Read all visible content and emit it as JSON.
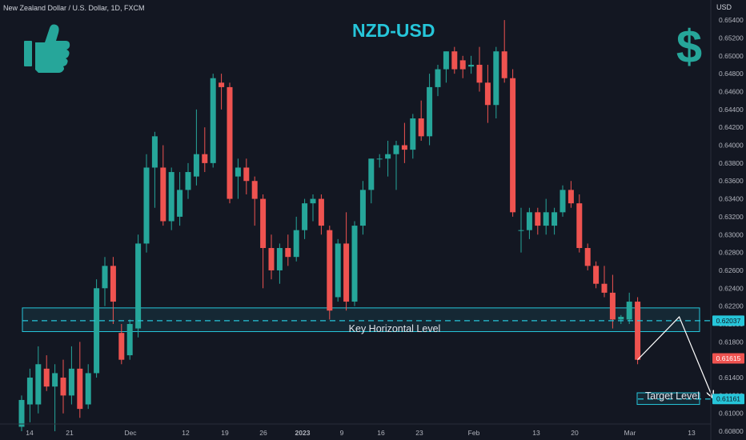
{
  "header": {
    "symbol_info": "New Zealand Dollar / U.S. Dollar, 1D, FXCM",
    "currency": "USD",
    "title": "NZD-USD"
  },
  "icons": {
    "left": "thumbs-up-icon",
    "right": "dollar-icon",
    "accent": "#26a69a"
  },
  "annotations": {
    "key_level": "Key Horizontal Level",
    "target_level": "Target Level"
  },
  "price_badges": {
    "key_level_price": "0.62037",
    "current_price": "0.61615",
    "target_price": "0.61161"
  },
  "colors": {
    "background": "#131722",
    "up": "#26a69a",
    "down": "#ef5350",
    "cyan": "#26c6da"
  },
  "chart_data": {
    "type": "candlestick",
    "title": "NZD-USD",
    "ylim": [
      0.6072,
      0.6558
    ],
    "y_ticks": [
      "0.65400",
      "0.65200",
      "0.65000",
      "0.64800",
      "0.64600",
      "0.64400",
      "0.64200",
      "0.64000",
      "0.63800",
      "0.63600",
      "0.63400",
      "0.63200",
      "0.63000",
      "0.62800",
      "0.62600",
      "0.62400",
      "0.62200",
      "0.62000",
      "0.61800",
      "0.61600",
      "0.61400",
      "0.61200",
      "0.61000",
      "0.60800"
    ],
    "x_ticks": [
      {
        "label": "14",
        "bold": false
      },
      {
        "label": "21",
        "bold": false
      },
      {
        "label": "Dec",
        "bold": false
      },
      {
        "label": "12",
        "bold": false
      },
      {
        "label": "19",
        "bold": false
      },
      {
        "label": "26",
        "bold": false
      },
      {
        "label": "2023",
        "bold": true
      },
      {
        "label": "9",
        "bold": false
      },
      {
        "label": "16",
        "bold": false
      },
      {
        "label": "23",
        "bold": false
      },
      {
        "label": "Feb",
        "bold": false
      },
      {
        "label": "13",
        "bold": false
      },
      {
        "label": "20",
        "bold": false
      },
      {
        "label": "Mar",
        "bold": false
      },
      {
        "label": "13",
        "bold": false
      }
    ],
    "candles": [
      {
        "o": 0.6085,
        "h": 0.612,
        "l": 0.608,
        "c": 0.6115
      },
      {
        "o": 0.611,
        "h": 0.615,
        "l": 0.609,
        "c": 0.614
      },
      {
        "o": 0.611,
        "h": 0.6175,
        "l": 0.61,
        "c": 0.6155
      },
      {
        "o": 0.615,
        "h": 0.6165,
        "l": 0.6125,
        "c": 0.613
      },
      {
        "o": 0.613,
        "h": 0.6155,
        "l": 0.608,
        "c": 0.6145
      },
      {
        "o": 0.614,
        "h": 0.616,
        "l": 0.61,
        "c": 0.612
      },
      {
        "o": 0.612,
        "h": 0.6175,
        "l": 0.611,
        "c": 0.615
      },
      {
        "o": 0.615,
        "h": 0.618,
        "l": 0.6095,
        "c": 0.6105
      },
      {
        "o": 0.611,
        "h": 0.6155,
        "l": 0.6105,
        "c": 0.6145
      },
      {
        "o": 0.6145,
        "h": 0.625,
        "l": 0.614,
        "c": 0.624
      },
      {
        "o": 0.624,
        "h": 0.6275,
        "l": 0.622,
        "c": 0.6265
      },
      {
        "o": 0.6265,
        "h": 0.6275,
        "l": 0.62,
        "c": 0.6225
      },
      {
        "o": 0.619,
        "h": 0.62,
        "l": 0.6155,
        "c": 0.616
      },
      {
        "o": 0.6165,
        "h": 0.6205,
        "l": 0.616,
        "c": 0.62
      },
      {
        "o": 0.6195,
        "h": 0.63,
        "l": 0.6185,
        "c": 0.629
      },
      {
        "o": 0.629,
        "h": 0.639,
        "l": 0.628,
        "c": 0.6375
      },
      {
        "o": 0.6375,
        "h": 0.6415,
        "l": 0.633,
        "c": 0.641
      },
      {
        "o": 0.6375,
        "h": 0.64,
        "l": 0.631,
        "c": 0.6315
      },
      {
        "o": 0.6315,
        "h": 0.6375,
        "l": 0.6305,
        "c": 0.637
      },
      {
        "o": 0.632,
        "h": 0.637,
        "l": 0.631,
        "c": 0.635
      },
      {
        "o": 0.635,
        "h": 0.638,
        "l": 0.634,
        "c": 0.637
      },
      {
        "o": 0.6365,
        "h": 0.644,
        "l": 0.6355,
        "c": 0.639
      },
      {
        "o": 0.639,
        "h": 0.642,
        "l": 0.637,
        "c": 0.638
      },
      {
        "o": 0.638,
        "h": 0.648,
        "l": 0.6375,
        "c": 0.6475
      },
      {
        "o": 0.647,
        "h": 0.648,
        "l": 0.644,
        "c": 0.6465
      },
      {
        "o": 0.6465,
        "h": 0.647,
        "l": 0.6335,
        "c": 0.634
      },
      {
        "o": 0.6365,
        "h": 0.6385,
        "l": 0.634,
        "c": 0.6375
      },
      {
        "o": 0.6375,
        "h": 0.6385,
        "l": 0.6345,
        "c": 0.636
      },
      {
        "o": 0.636,
        "h": 0.6365,
        "l": 0.631,
        "c": 0.634
      },
      {
        "o": 0.634,
        "h": 0.6345,
        "l": 0.624,
        "c": 0.6285
      },
      {
        "o": 0.6285,
        "h": 0.63,
        "l": 0.625,
        "c": 0.626
      },
      {
        "o": 0.626,
        "h": 0.629,
        "l": 0.6245,
        "c": 0.6285
      },
      {
        "o": 0.6285,
        "h": 0.63,
        "l": 0.6265,
        "c": 0.6275
      },
      {
        "o": 0.6275,
        "h": 0.632,
        "l": 0.627,
        "c": 0.6305
      },
      {
        "o": 0.6305,
        "h": 0.634,
        "l": 0.6295,
        "c": 0.6335
      },
      {
        "o": 0.6335,
        "h": 0.6345,
        "l": 0.6315,
        "c": 0.634
      },
      {
        "o": 0.634,
        "h": 0.6345,
        "l": 0.63,
        "c": 0.631
      },
      {
        "o": 0.6305,
        "h": 0.631,
        "l": 0.6205,
        "c": 0.6215
      },
      {
        "o": 0.623,
        "h": 0.6295,
        "l": 0.6225,
        "c": 0.629
      },
      {
        "o": 0.629,
        "h": 0.6325,
        "l": 0.6215,
        "c": 0.6225
      },
      {
        "o": 0.6225,
        "h": 0.6315,
        "l": 0.622,
        "c": 0.631
      },
      {
        "o": 0.631,
        "h": 0.636,
        "l": 0.63,
        "c": 0.635
      },
      {
        "o": 0.635,
        "h": 0.6385,
        "l": 0.6335,
        "c": 0.6385
      },
      {
        "o": 0.6385,
        "h": 0.639,
        "l": 0.6375,
        "c": 0.6385
      },
      {
        "o": 0.6385,
        "h": 0.6405,
        "l": 0.6365,
        "c": 0.639
      },
      {
        "o": 0.639,
        "h": 0.6405,
        "l": 0.635,
        "c": 0.64
      },
      {
        "o": 0.64,
        "h": 0.6425,
        "l": 0.638,
        "c": 0.6395
      },
      {
        "o": 0.6395,
        "h": 0.6435,
        "l": 0.6385,
        "c": 0.643
      },
      {
        "o": 0.643,
        "h": 0.645,
        "l": 0.6405,
        "c": 0.641
      },
      {
        "o": 0.641,
        "h": 0.648,
        "l": 0.64,
        "c": 0.6465
      },
      {
        "o": 0.6465,
        "h": 0.649,
        "l": 0.6455,
        "c": 0.6485
      },
      {
        "o": 0.6485,
        "h": 0.6505,
        "l": 0.647,
        "c": 0.6505
      },
      {
        "o": 0.6505,
        "h": 0.651,
        "l": 0.648,
        "c": 0.6485
      },
      {
        "o": 0.6495,
        "h": 0.65,
        "l": 0.6475,
        "c": 0.6485
      },
      {
        "o": 0.6488,
        "h": 0.65,
        "l": 0.648,
        "c": 0.649
      },
      {
        "o": 0.649,
        "h": 0.651,
        "l": 0.646,
        "c": 0.647
      },
      {
        "o": 0.647,
        "h": 0.649,
        "l": 0.6425,
        "c": 0.6445
      },
      {
        "o": 0.6445,
        "h": 0.651,
        "l": 0.643,
        "c": 0.6505
      },
      {
        "o": 0.6505,
        "h": 0.654,
        "l": 0.647,
        "c": 0.6475
      },
      {
        "o": 0.6475,
        "h": 0.6485,
        "l": 0.632,
        "c": 0.6325
      },
      {
        "o": 0.6305,
        "h": 0.633,
        "l": 0.628,
        "c": 0.6305
      },
      {
        "o": 0.6305,
        "h": 0.633,
        "l": 0.6295,
        "c": 0.6325
      },
      {
        "o": 0.6325,
        "h": 0.633,
        "l": 0.63,
        "c": 0.631
      },
      {
        "o": 0.631,
        "h": 0.634,
        "l": 0.63,
        "c": 0.6325
      },
      {
        "o": 0.631,
        "h": 0.633,
        "l": 0.63,
        "c": 0.6325
      },
      {
        "o": 0.6325,
        "h": 0.6355,
        "l": 0.632,
        "c": 0.635
      },
      {
        "o": 0.635,
        "h": 0.636,
        "l": 0.633,
        "c": 0.6335
      },
      {
        "o": 0.6335,
        "h": 0.6345,
        "l": 0.628,
        "c": 0.6285
      },
      {
        "o": 0.6285,
        "h": 0.629,
        "l": 0.626,
        "c": 0.6265
      },
      {
        "o": 0.6265,
        "h": 0.627,
        "l": 0.624,
        "c": 0.6245
      },
      {
        "o": 0.6245,
        "h": 0.6265,
        "l": 0.623,
        "c": 0.6235
      },
      {
        "o": 0.6235,
        "h": 0.6255,
        "l": 0.6195,
        "c": 0.6205
      },
      {
        "o": 0.6205,
        "h": 0.621,
        "l": 0.62,
        "c": 0.6208
      },
      {
        "o": 0.6205,
        "h": 0.6235,
        "l": 0.62,
        "c": 0.6225
      },
      {
        "o": 0.6225,
        "h": 0.623,
        "l": 0.6155,
        "c": 0.616
      }
    ],
    "key_level": {
      "price": 0.62037,
      "zone": [
        0.61915,
        0.6218
      ]
    },
    "target_level": {
      "price": 0.61161,
      "zone": [
        0.611,
        0.6123
      ]
    },
    "projection": [
      {
        "bar": 74,
        "price": 0.616
      },
      {
        "bar": 79,
        "price": 0.6208
      },
      {
        "bar": 83,
        "price": 0.6118
      }
    ]
  }
}
